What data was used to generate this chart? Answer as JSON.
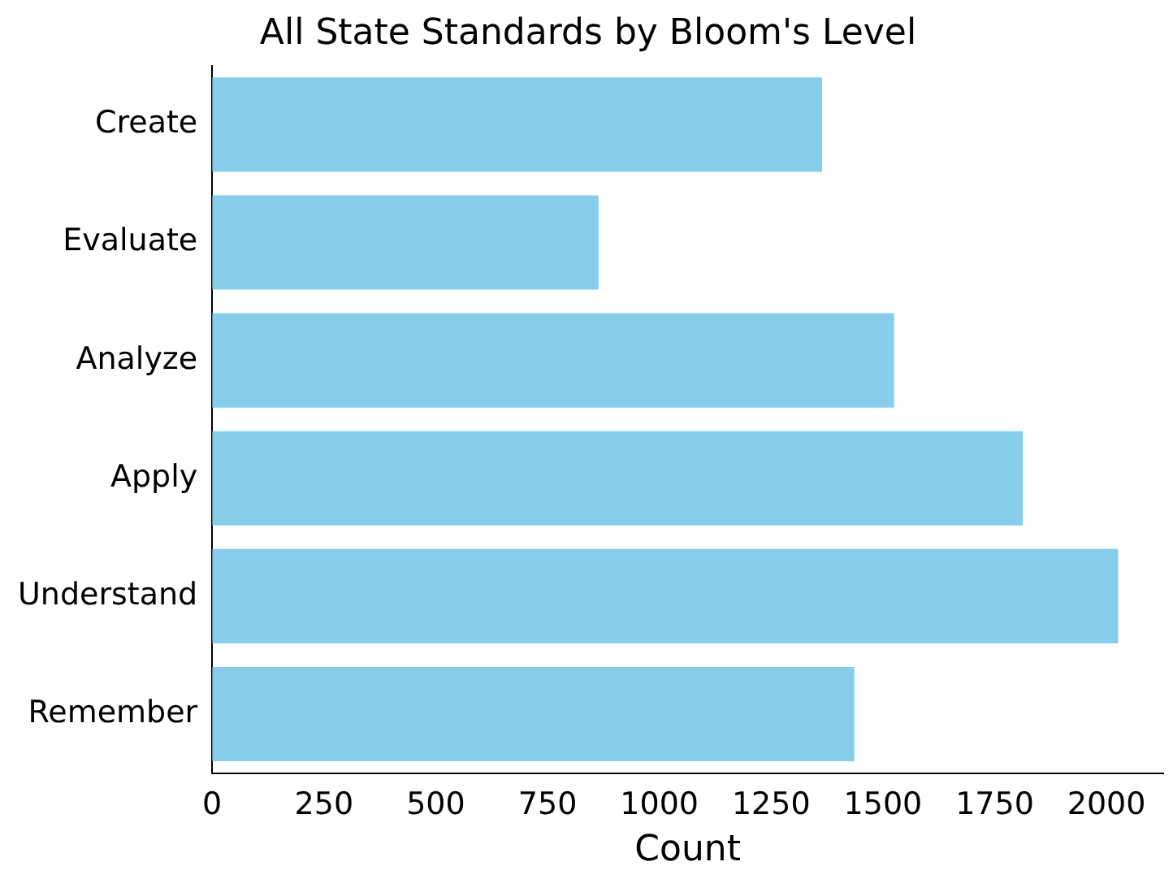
{
  "chart_data": {
    "type": "bar",
    "orientation": "horizontal",
    "title": "All State Standards by Bloom's Level",
    "xlabel": "Count",
    "categories": [
      "Create",
      "Evaluate",
      "Analyze",
      "Apply",
      "Understand",
      "Remember"
    ],
    "values": [
      1364,
      864,
      1525,
      1813,
      2026,
      1436
    ],
    "color": "#87ceeb",
    "xlim": [
      0,
      2127
    ],
    "xticks": [
      0,
      250,
      500,
      750,
      1000,
      1250,
      1500,
      1750,
      2000
    ],
    "grid": false,
    "legend": false
  }
}
